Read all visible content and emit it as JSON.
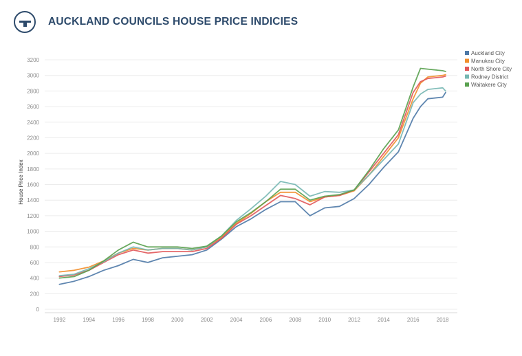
{
  "header": {
    "logo_icon": "table-logo-icon",
    "title": "AUCKLAND COUNCILS HOUSE PRICE INDICIES"
  },
  "chart_data": {
    "type": "line",
    "title": "AUCKLAND COUNCILS HOUSE PRICE INDICIES",
    "xlabel": "",
    "ylabel": "House Price Index",
    "xlim": [
      1991.0,
      2019.0
    ],
    "ylim": [
      0,
      3200
    ],
    "x_ticks": [
      1992,
      1994,
      1996,
      1998,
      2000,
      2002,
      2004,
      2006,
      2008,
      2010,
      2012,
      2014,
      2016,
      2018
    ],
    "y_ticks": [
      0,
      200,
      400,
      600,
      800,
      1000,
      1200,
      1400,
      1600,
      1800,
      2000,
      2200,
      2400,
      2600,
      2800,
      3000,
      3200
    ],
    "grid": true,
    "legend": "top-right",
    "x": [
      1992,
      1993,
      1994,
      1995,
      1996,
      1997,
      1998,
      1999,
      2000,
      2001,
      2002,
      2003,
      2004,
      2005,
      2006,
      2007,
      2008,
      2009,
      2010,
      2011,
      2012,
      2013,
      2014,
      2015,
      2016,
      2016.5,
      2017,
      2018,
      2018.2
    ],
    "series": [
      {
        "name": "Auckland City",
        "color": "#4e79a7",
        "values": [
          320,
          360,
          420,
          500,
          560,
          640,
          600,
          660,
          680,
          700,
          760,
          900,
          1060,
          1160,
          1280,
          1380,
          1380,
          1200,
          1300,
          1320,
          1420,
          1600,
          1820,
          2020,
          2450,
          2600,
          2700,
          2720,
          2780
        ]
      },
      {
        "name": "Manukau City",
        "color": "#f28e2b",
        "values": [
          480,
          500,
          540,
          620,
          720,
          780,
          760,
          780,
          780,
          760,
          800,
          920,
          1100,
          1230,
          1380,
          1500,
          1500,
          1380,
          1440,
          1460,
          1520,
          1720,
          1960,
          2200,
          2700,
          2900,
          2980,
          3000,
          3010
        ]
      },
      {
        "name": "North Shore City",
        "color": "#e15759",
        "values": [
          420,
          440,
          500,
          600,
          700,
          760,
          720,
          740,
          740,
          740,
          780,
          910,
          1090,
          1200,
          1330,
          1460,
          1420,
          1340,
          1440,
          1460,
          1530,
          1760,
          2000,
          2240,
          2780,
          2920,
          2960,
          2980,
          2990
        ]
      },
      {
        "name": "Rodney District",
        "color": "#76b7b2",
        "values": [
          430,
          450,
          520,
          610,
          720,
          800,
          760,
          780,
          780,
          760,
          800,
          940,
          1140,
          1290,
          1450,
          1640,
          1600,
          1450,
          1510,
          1500,
          1530,
          1720,
          1920,
          2120,
          2650,
          2760,
          2820,
          2840,
          2800
        ]
      },
      {
        "name": "Waitakere City",
        "color": "#59a14f",
        "values": [
          400,
          420,
          500,
          620,
          760,
          860,
          800,
          800,
          800,
          780,
          810,
          940,
          1120,
          1240,
          1380,
          1540,
          1540,
          1400,
          1450,
          1470,
          1530,
          1780,
          2060,
          2300,
          2850,
          3090,
          3080,
          3060,
          3050
        ]
      }
    ]
  }
}
